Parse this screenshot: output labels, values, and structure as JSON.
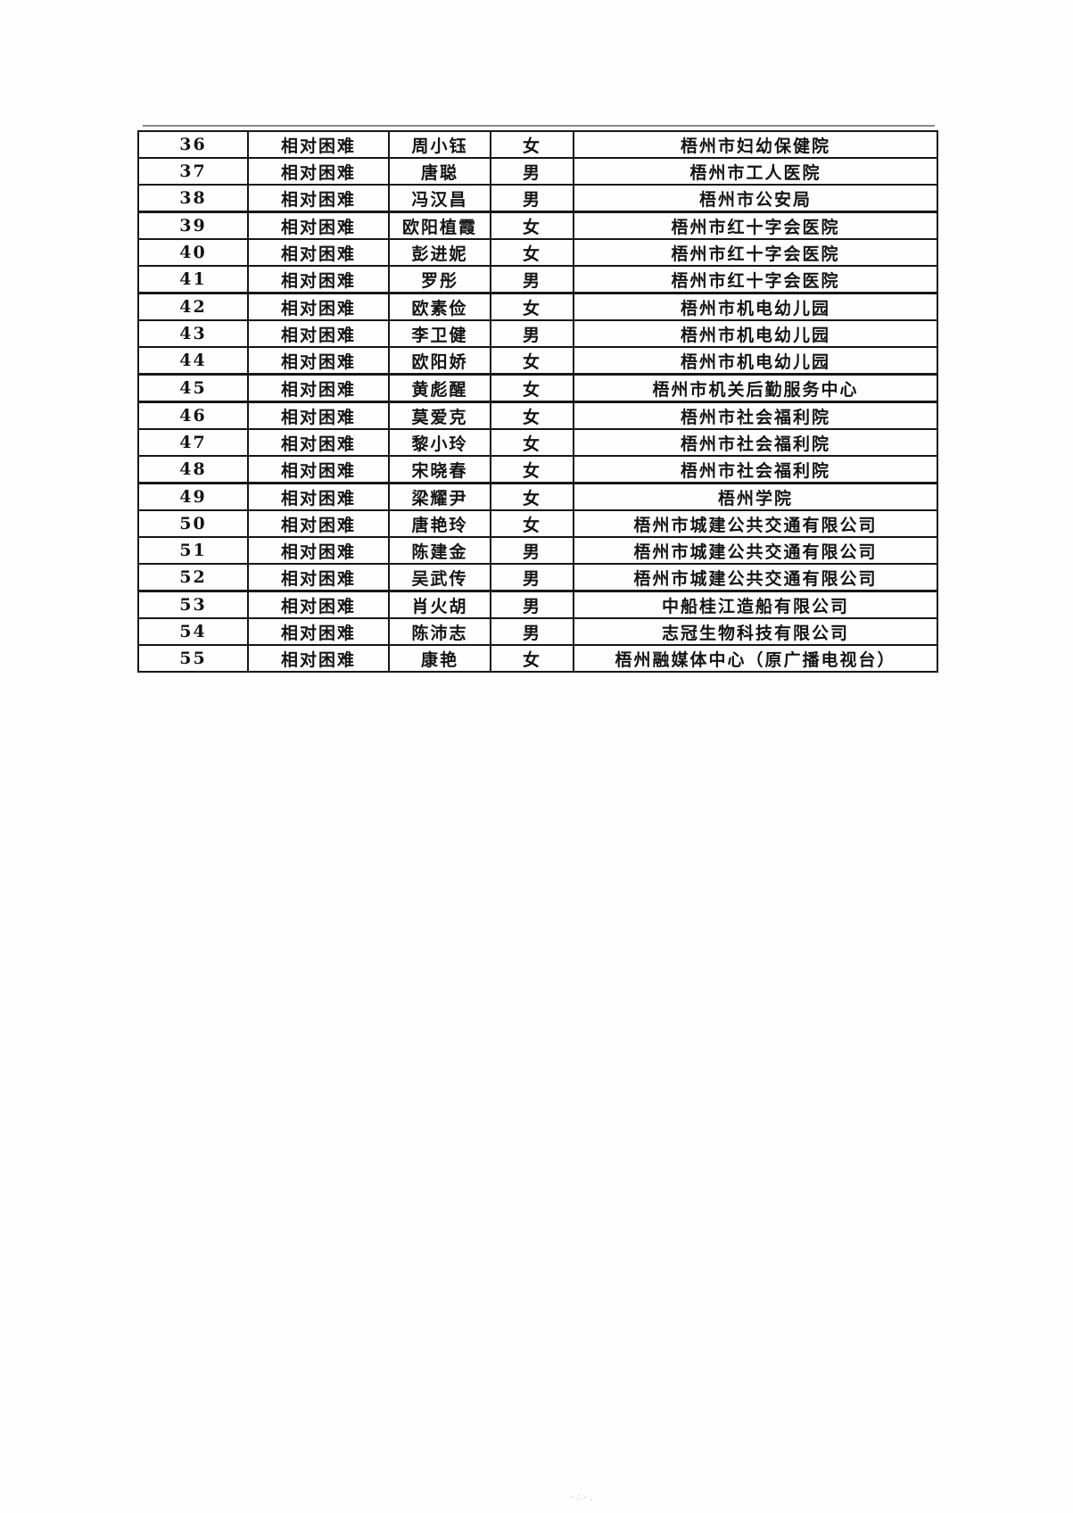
{
  "table": {
    "rows": [
      {
        "number": "36",
        "category": "相对困难",
        "name": "周小钰",
        "gender": "女",
        "organization": "梧州市妇幼保健院"
      },
      {
        "number": "37",
        "category": "相对困难",
        "name": "唐聪",
        "gender": "男",
        "organization": "梧州市工人医院"
      },
      {
        "number": "38",
        "category": "相对困难",
        "name": "冯汉昌",
        "gender": "男",
        "organization": "梧州市公安局"
      },
      {
        "number": "39",
        "category": "相对困难",
        "name": "欧阳植霞",
        "gender": "女",
        "organization": "梧州市红十字会医院"
      },
      {
        "number": "40",
        "category": "相对困难",
        "name": "彭进妮",
        "gender": "女",
        "organization": "梧州市红十字会医院"
      },
      {
        "number": "41",
        "category": "相对困难",
        "name": "罗彤",
        "gender": "男",
        "organization": "梧州市红十字会医院"
      },
      {
        "number": "42",
        "category": "相对困难",
        "name": "欧素俭",
        "gender": "女",
        "organization": "梧州市机电幼儿园"
      },
      {
        "number": "43",
        "category": "相对困难",
        "name": "李卫健",
        "gender": "男",
        "organization": "梧州市机电幼儿园"
      },
      {
        "number": "44",
        "category": "相对困难",
        "name": "欧阳娇",
        "gender": "女",
        "organization": "梧州市机电幼儿园"
      },
      {
        "number": "45",
        "category": "相对困难",
        "name": "黄彪醒",
        "gender": "女",
        "organization": "梧州市机关后勤服务中心"
      },
      {
        "number": "46",
        "category": "相对困难",
        "name": "莫爱克",
        "gender": "女",
        "organization": "梧州市社会福利院"
      },
      {
        "number": "47",
        "category": "相对困难",
        "name": "黎小玲",
        "gender": "女",
        "organization": "梧州市社会福利院"
      },
      {
        "number": "48",
        "category": "相对困难",
        "name": "宋晓春",
        "gender": "女",
        "organization": "梧州市社会福利院"
      },
      {
        "number": "49",
        "category": "相对困难",
        "name": "梁耀尹",
        "gender": "女",
        "organization": "梧州学院"
      },
      {
        "number": "50",
        "category": "相对困难",
        "name": "唐艳玲",
        "gender": "女",
        "organization": "梧州市城建公共交通有限公司"
      },
      {
        "number": "51",
        "category": "相对困难",
        "name": "陈建金",
        "gender": "男",
        "organization": "梧州市城建公共交通有限公司"
      },
      {
        "number": "52",
        "category": "相对困难",
        "name": "吴武传",
        "gender": "男",
        "organization": "梧州市城建公共交通有限公司"
      },
      {
        "number": "53",
        "category": "相对困难",
        "name": "肖火胡",
        "gender": "男",
        "organization": "中船桂江造船有限公司"
      },
      {
        "number": "54",
        "category": "相对困难",
        "name": "陈沛志",
        "gender": "男",
        "organization": "志冠生物科技有限公司"
      },
      {
        "number": "55",
        "category": "相对困难",
        "name": "康艳",
        "gender": "女",
        "organization": "梧州融媒体中心（原广播电视台）"
      }
    ]
  },
  "footer": {
    "mark": "·∴·."
  }
}
